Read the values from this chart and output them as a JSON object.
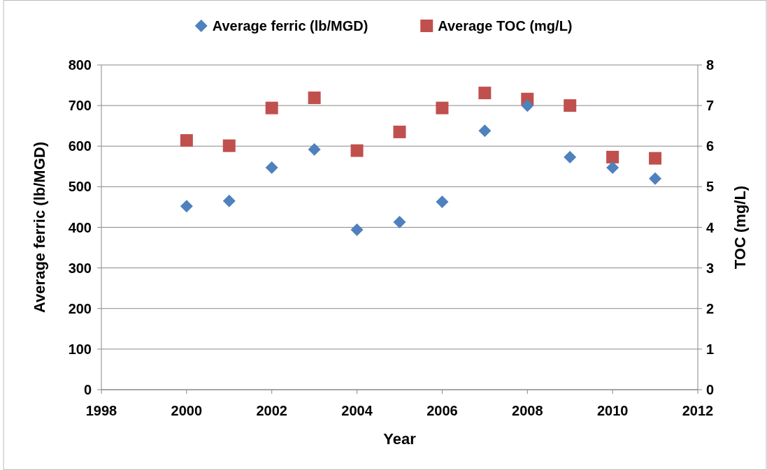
{
  "chart_data": {
    "type": "scatter",
    "xlabel": "Year",
    "ylabel": "Average ferric (lb/MGD)",
    "y2label": "TOC (mg/L)",
    "x": [
      2000,
      2001,
      2002,
      2003,
      2004,
      2005,
      2006,
      2007,
      2008,
      2009,
      2010,
      2011
    ],
    "series": [
      {
        "name": "Average ferric (lb/MGD)",
        "color": "#4f81bd",
        "marker": "diamond",
        "values": [
          452,
          465,
          547,
          592,
          394,
          413,
          463,
          638,
          700,
          573,
          547,
          520
        ]
      },
      {
        "name": "Average TOC (mg/L)",
        "color": "#c0504d",
        "marker": "square",
        "axis": "y2",
        "values": [
          6.14,
          6.01,
          6.94,
          7.19,
          5.89,
          6.35,
          6.94,
          7.31,
          7.16,
          7.0,
          5.73,
          5.7
        ]
      }
    ],
    "xlim": [
      1998,
      2012
    ],
    "xticks": [
      1998,
      2000,
      2002,
      2004,
      2006,
      2008,
      2010,
      2012
    ],
    "ylim": [
      0,
      800
    ],
    "yticks": [
      0,
      100,
      200,
      300,
      400,
      500,
      600,
      700,
      800
    ],
    "y2lim": [
      0,
      8
    ],
    "y2ticks": [
      0,
      1,
      2,
      3,
      4,
      5,
      6,
      7,
      8
    ],
    "grid": "y",
    "legend": "top"
  }
}
